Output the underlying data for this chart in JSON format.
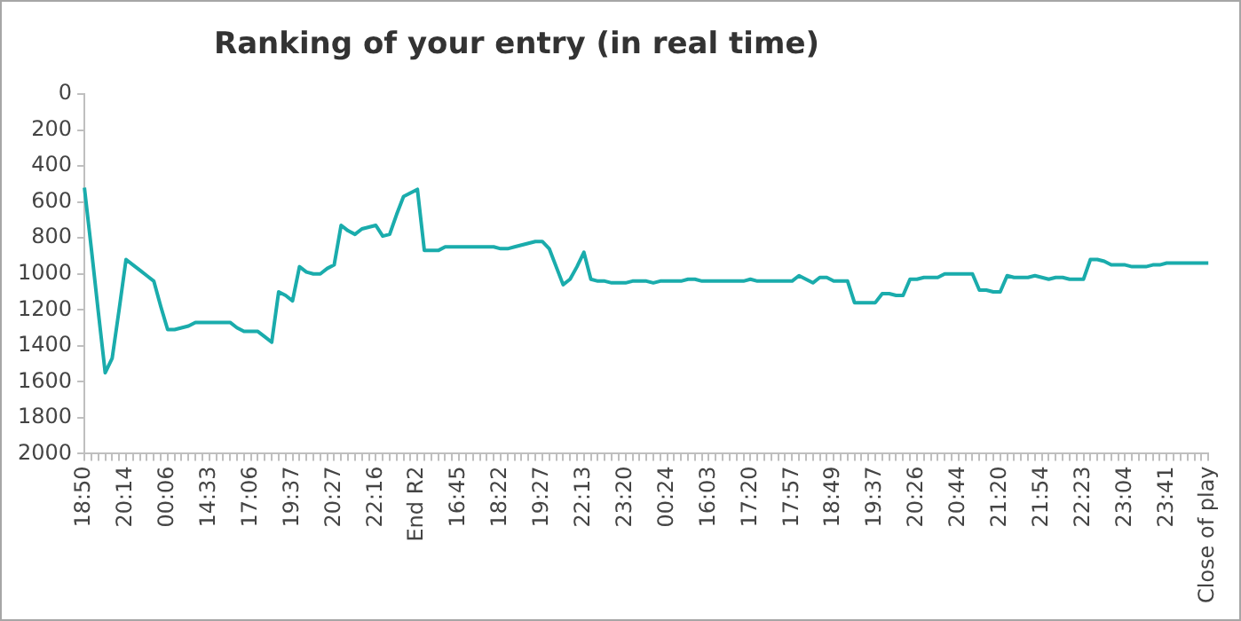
{
  "chart_data": {
    "type": "line",
    "title": "Ranking of your entry (in real time)",
    "categories": [
      "18:50",
      null,
      null,
      null,
      null,
      null,
      "20:14",
      null,
      null,
      null,
      null,
      null,
      "00:06",
      null,
      null,
      null,
      null,
      null,
      "14:33",
      null,
      null,
      null,
      null,
      null,
      "17:06",
      null,
      null,
      null,
      null,
      null,
      "19:37",
      null,
      null,
      null,
      null,
      null,
      "20:27",
      null,
      null,
      null,
      null,
      null,
      "22:16",
      null,
      null,
      null,
      null,
      null,
      "End R2",
      null,
      null,
      null,
      null,
      null,
      "16:45",
      null,
      null,
      null,
      null,
      null,
      "18:22",
      null,
      null,
      null,
      null,
      null,
      "19:27",
      null,
      null,
      null,
      null,
      null,
      "22:13",
      null,
      null,
      null,
      null,
      null,
      "23:20",
      null,
      null,
      null,
      null,
      null,
      "00:24",
      null,
      null,
      null,
      null,
      null,
      "16:03",
      null,
      null,
      null,
      null,
      null,
      "17:20",
      null,
      null,
      null,
      null,
      null,
      "17:57",
      null,
      null,
      null,
      null,
      null,
      "18:49",
      null,
      null,
      null,
      null,
      null,
      "19:37",
      null,
      null,
      null,
      null,
      null,
      "20:26",
      null,
      null,
      null,
      null,
      null,
      "20:44",
      null,
      null,
      null,
      null,
      null,
      "21:20",
      null,
      null,
      null,
      null,
      null,
      "21:54",
      null,
      null,
      null,
      null,
      null,
      "22:23",
      null,
      null,
      null,
      null,
      null,
      "23:04",
      null,
      null,
      null,
      null,
      null,
      "23:41",
      null,
      null,
      null,
      null,
      null,
      "Close of play"
    ],
    "series": [
      {
        "color": "#1aacac",
        "values": [
          520,
          860,
          1210,
          1550,
          1470,
          1200,
          920,
          950,
          980,
          1010,
          1040,
          1180,
          1310,
          1310,
          1300,
          1290,
          1270,
          1270,
          1270,
          1270,
          1270,
          1270,
          1300,
          1320,
          1320,
          1320,
          1350,
          1380,
          1100,
          1120,
          1150,
          960,
          990,
          1000,
          1000,
          970,
          950,
          730,
          760,
          780,
          750,
          740,
          730,
          790,
          780,
          670,
          570,
          550,
          530,
          870,
          870,
          870,
          850,
          850,
          850,
          850,
          850,
          850,
          850,
          850,
          860,
          860,
          850,
          840,
          830,
          820,
          820,
          860,
          960,
          1060,
          1030,
          960,
          880,
          1030,
          1040,
          1040,
          1050,
          1050,
          1050,
          1040,
          1040,
          1040,
          1050,
          1040,
          1040,
          1040,
          1040,
          1030,
          1030,
          1040,
          1040,
          1040,
          1040,
          1040,
          1040,
          1040,
          1030,
          1040,
          1040,
          1040,
          1040,
          1040,
          1040,
          1010,
          1030,
          1050,
          1020,
          1020,
          1040,
          1040,
          1040,
          1160,
          1160,
          1160,
          1160,
          1110,
          1110,
          1120,
          1120,
          1030,
          1030,
          1020,
          1020,
          1020,
          1000,
          1000,
          1000,
          1000,
          1000,
          1090,
          1090,
          1100,
          1100,
          1010,
          1020,
          1020,
          1020,
          1010,
          1020,
          1030,
          1020,
          1020,
          1030,
          1030,
          1030,
          920,
          920,
          930,
          950,
          950,
          950,
          960,
          960,
          960,
          950,
          950,
          940,
          940,
          940,
          940,
          940,
          940,
          940
        ]
      }
    ],
    "ylim": [
      2000,
      0
    ],
    "yticks": [
      0,
      200,
      400,
      600,
      800,
      1000,
      1200,
      1400,
      1600,
      1800,
      2000
    ],
    "grid": false,
    "legend": false,
    "marker": "none",
    "line_style": "solid"
  }
}
